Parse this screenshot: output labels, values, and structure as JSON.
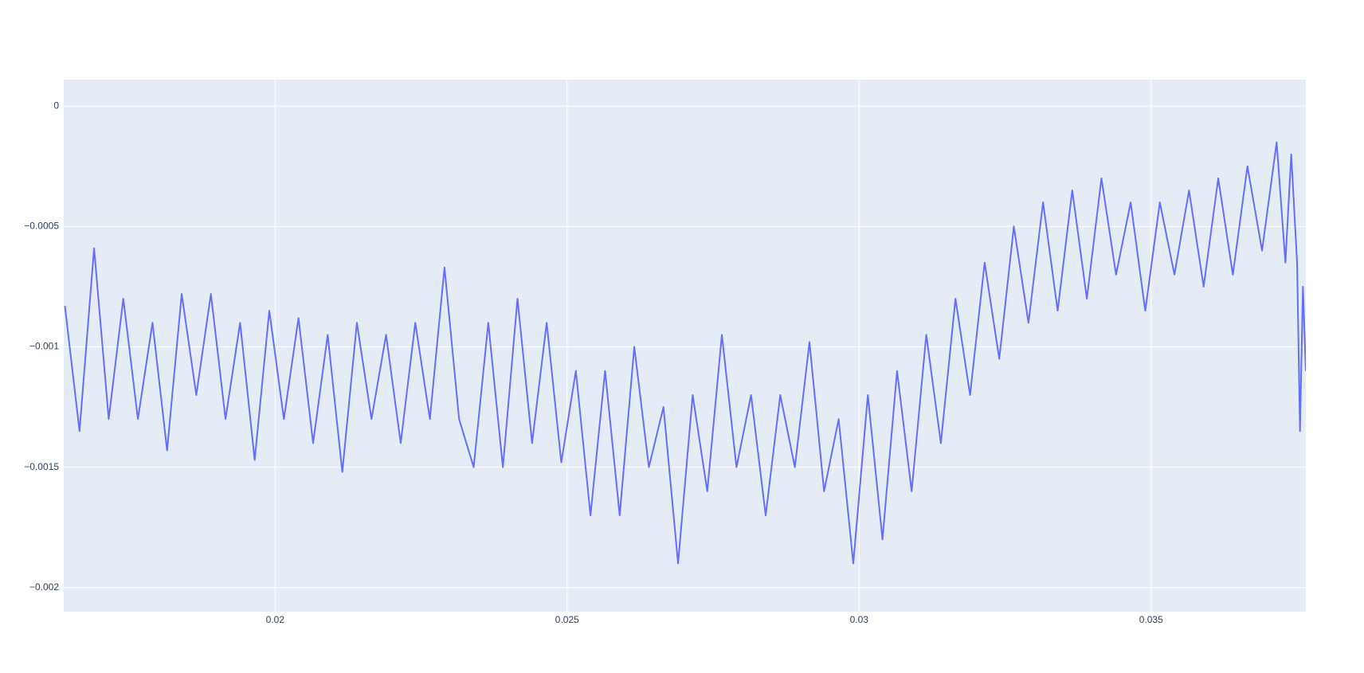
{
  "chart_data": {
    "type": "line",
    "x": [
      0.0164,
      0.01665,
      0.0169,
      0.01715,
      0.0174,
      0.01765,
      0.0179,
      0.01815,
      0.0184,
      0.01865,
      0.0189,
      0.01915,
      0.0194,
      0.01965,
      0.0199,
      0.02015,
      0.0204,
      0.02065,
      0.0209,
      0.02115,
      0.0214,
      0.02165,
      0.0219,
      0.02215,
      0.0224,
      0.02265,
      0.0229,
      0.02315,
      0.0234,
      0.02365,
      0.0239,
      0.02415,
      0.0244,
      0.02465,
      0.0249,
      0.02515,
      0.0254,
      0.02565,
      0.0259,
      0.02615,
      0.0264,
      0.02665,
      0.0269,
      0.02715,
      0.0274,
      0.02765,
      0.0279,
      0.02815,
      0.0284,
      0.02865,
      0.0289,
      0.02915,
      0.0294,
      0.02965,
      0.0299,
      0.03015,
      0.0304,
      0.03065,
      0.0309,
      0.03115,
      0.0314,
      0.03165,
      0.0319,
      0.03215,
      0.0324,
      0.03265,
      0.0329,
      0.03315,
      0.0334,
      0.03365,
      0.0339,
      0.03415,
      0.0344,
      0.03465,
      0.0349,
      0.03515,
      0.0354,
      0.03565,
      0.0359,
      0.03615,
      0.0364,
      0.03665,
      0.0369,
      0.03715,
      0.0373,
      0.0374,
      0.0375,
      0.03755,
      0.0376,
      0.03765
    ],
    "series": [
      {
        "color": "#636efa",
        "values": [
          -0.00083,
          -0.00135,
          -0.00059,
          -0.0013,
          -0.0008,
          -0.0013,
          -0.0009,
          -0.00143,
          -0.00078,
          -0.0012,
          -0.00078,
          -0.0013,
          -0.0009,
          -0.00147,
          -0.00085,
          -0.0013,
          -0.00088,
          -0.0014,
          -0.00095,
          -0.00152,
          -0.0009,
          -0.0013,
          -0.00095,
          -0.0014,
          -0.0009,
          -0.0013,
          -0.00067,
          -0.0013,
          -0.0015,
          -0.0009,
          -0.0015,
          -0.0008,
          -0.0014,
          -0.0009,
          -0.00148,
          -0.0011,
          -0.0017,
          -0.0011,
          -0.0017,
          -0.001,
          -0.0015,
          -0.00125,
          -0.0019,
          -0.0012,
          -0.0016,
          -0.00095,
          -0.0015,
          -0.0012,
          -0.0017,
          -0.0012,
          -0.0015,
          -0.00098,
          -0.0016,
          -0.0013,
          -0.0019,
          -0.0012,
          -0.0018,
          -0.0011,
          -0.0016,
          -0.00095,
          -0.0014,
          -0.0008,
          -0.0012,
          -0.00065,
          -0.00105,
          -0.0005,
          -0.0009,
          -0.0004,
          -0.00085,
          -0.00035,
          -0.0008,
          -0.0003,
          -0.0007,
          -0.0004,
          -0.00085,
          -0.0004,
          -0.0007,
          -0.00035,
          -0.00075,
          -0.0003,
          -0.0007,
          -0.00025,
          -0.0006,
          -0.00015,
          -0.00065,
          -0.0002,
          -0.00065,
          -0.00135,
          -0.00075,
          -0.0011
        ]
      }
    ],
    "xlim": [
      0.01638,
      0.03765
    ],
    "ylim": [
      -0.0021,
      0.00011
    ],
    "xticks": [
      0.02,
      0.025,
      0.03,
      0.035
    ],
    "yticks": [
      {
        "value": 0,
        "label": "0"
      },
      {
        "value": -0.0005,
        "label": "−0.0005"
      },
      {
        "value": -0.001,
        "label": "−0.001"
      },
      {
        "value": -0.0015,
        "label": "−0.0015"
      },
      {
        "value": -0.002,
        "label": "−0.002"
      }
    ],
    "grid": true
  }
}
